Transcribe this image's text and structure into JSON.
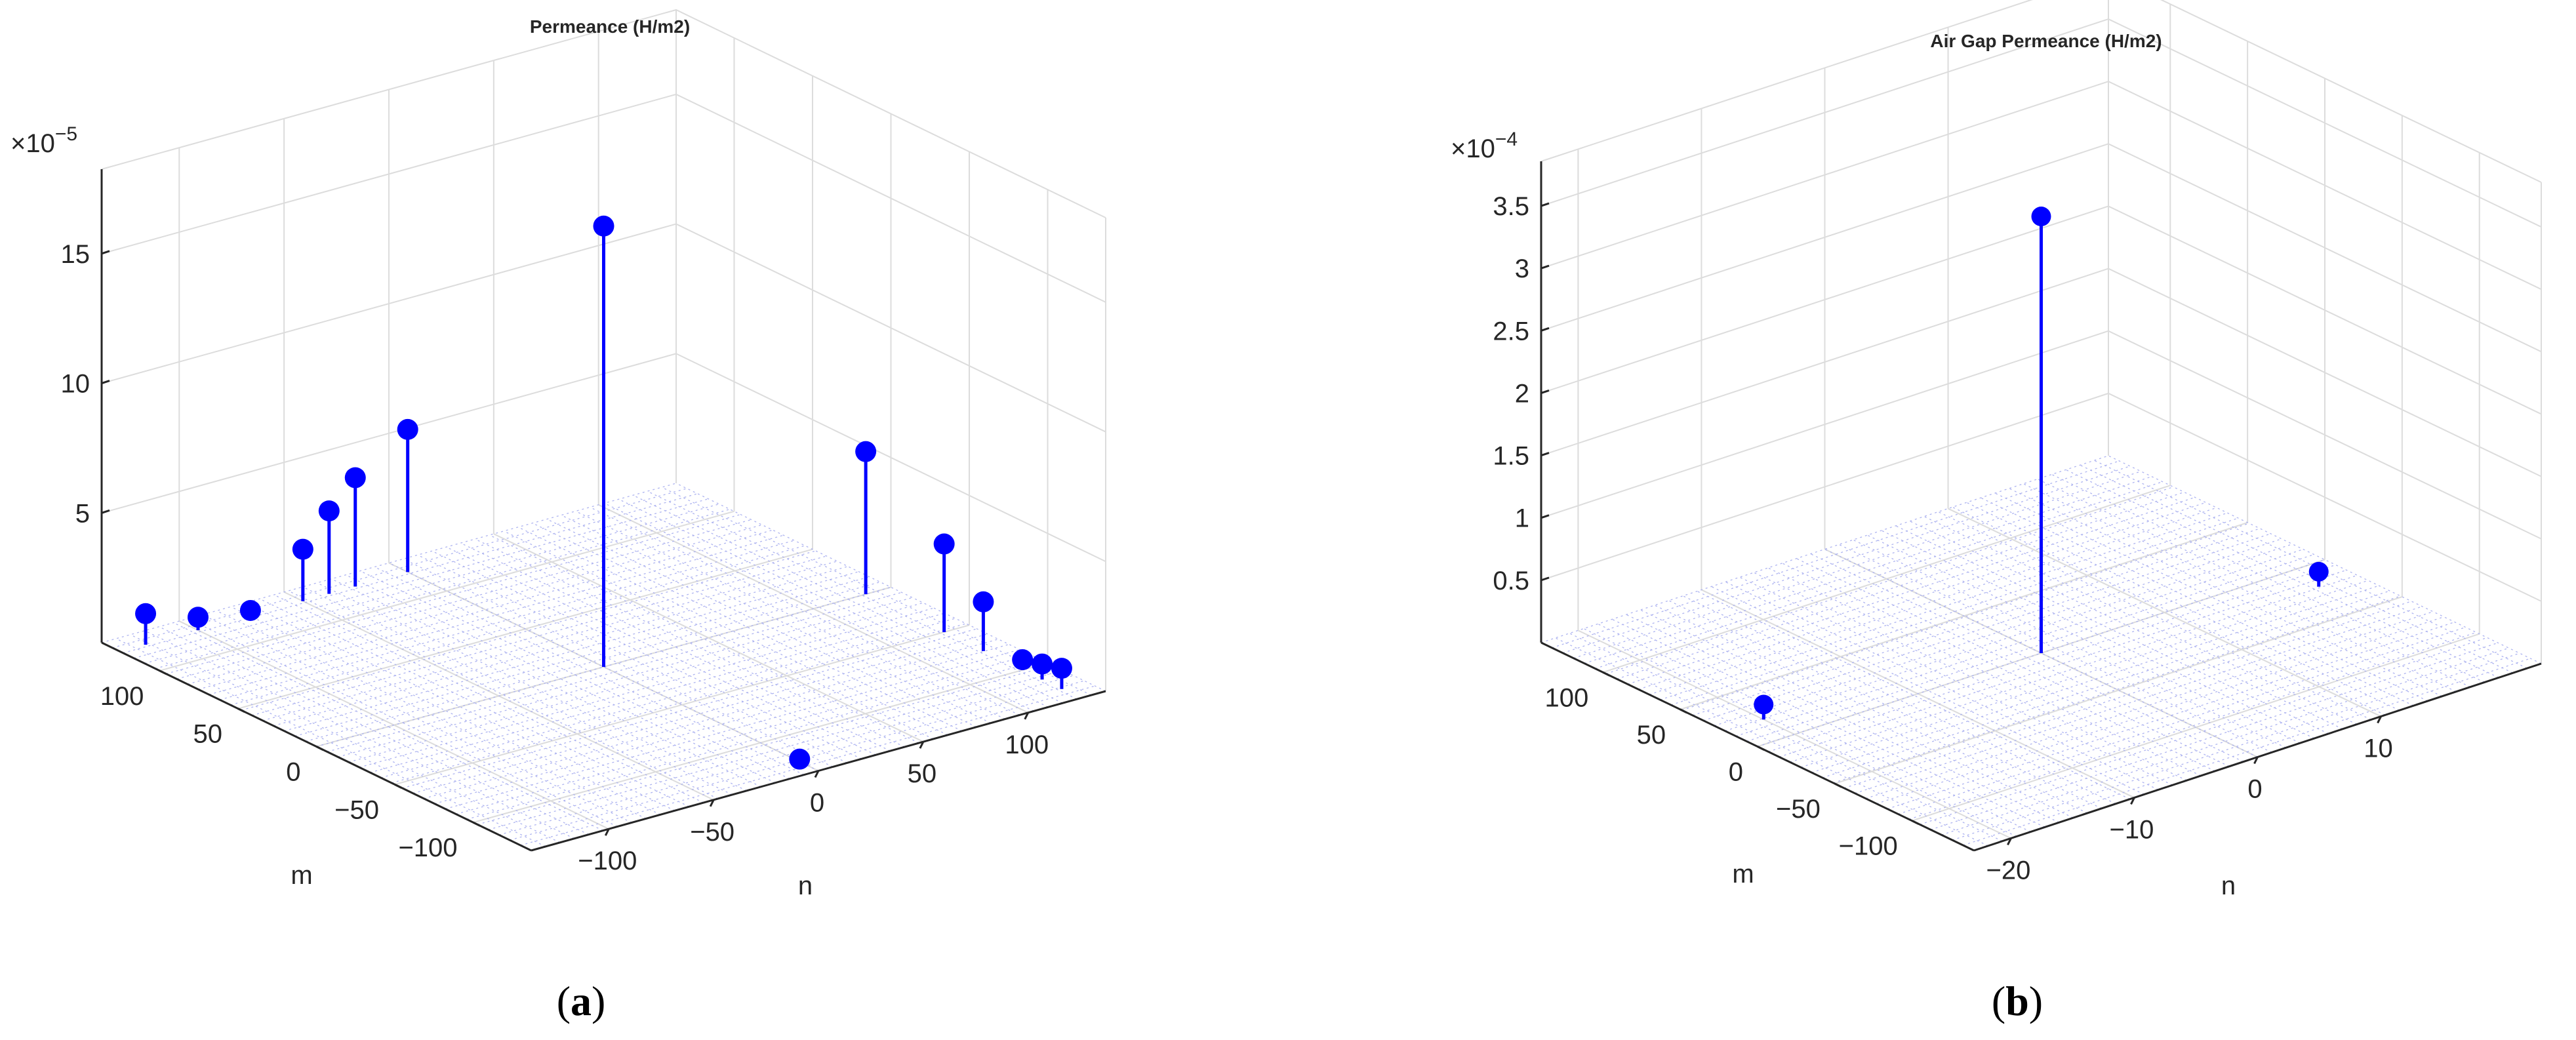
{
  "chart_data": [
    {
      "type": "stem3",
      "title": "Permeance (H/m2)",
      "xlabel": "m",
      "ylabel": "n",
      "zlabel": "",
      "z_exponent_base": "×10",
      "z_exponent": "−5",
      "m_ticks": [
        "100",
        "50",
        "0",
        "−50",
        "−100"
      ],
      "n_ticks": [
        "−100",
        "−50",
        "0",
        "50",
        "100"
      ],
      "z_ticks": [
        "5",
        "10",
        "15"
      ],
      "points": [
        {
          "m": 125,
          "n": -125,
          "z": 1.2
        },
        {
          "m": 125,
          "n": -100,
          "z": 0.5
        },
        {
          "m": 125,
          "n": -75,
          "z": 0.2
        },
        {
          "m": 125,
          "n": -50,
          "z": 2.0
        },
        {
          "m": 125,
          "n": -37.5,
          "z": 3.2
        },
        {
          "m": 125,
          "n": -25,
          "z": 4.2
        },
        {
          "m": 125,
          "n": 0,
          "z": 5.5
        },
        {
          "m": 0,
          "n": 0,
          "z": 17.0
        },
        {
          "m": 0,
          "n": 125,
          "z": 5.5
        },
        {
          "m": -50,
          "n": 125,
          "z": 3.4
        },
        {
          "m": -75,
          "n": 125,
          "z": 1.9
        },
        {
          "m": -100,
          "n": 125,
          "z": 0.4
        },
        {
          "m": -112.5,
          "n": 125,
          "z": 0.6
        },
        {
          "m": -125,
          "n": 125,
          "z": 0.8
        },
        {
          "m": -125,
          "n": 0,
          "z": 0.1
        }
      ]
    },
    {
      "type": "stem3",
      "title": "Air Gap Permeance (H/m2)",
      "xlabel": "m",
      "ylabel": "n",
      "zlabel": "",
      "z_exponent_base": "×10",
      "z_exponent": "−4",
      "m_ticks": [
        "100",
        "50",
        "0",
        "−50",
        "−100"
      ],
      "n_ticks": [
        "−20",
        "−10",
        "0",
        "10"
      ],
      "z_ticks": [
        "0.5",
        "1",
        "1.5",
        "2",
        "2.5",
        "3",
        "3.5"
      ],
      "points": [
        {
          "m": 0,
          "n": 0,
          "z": 3.5
        },
        {
          "m": 20,
          "n": -20,
          "z": 0.12
        },
        {
          "m": -20,
          "n": 20,
          "z": 0.12
        }
      ]
    }
  ],
  "captions": {
    "a": {
      "open": "(",
      "letter": "a",
      "close": ")"
    },
    "b": {
      "open": "(",
      "letter": "b",
      "close": ")"
    }
  }
}
